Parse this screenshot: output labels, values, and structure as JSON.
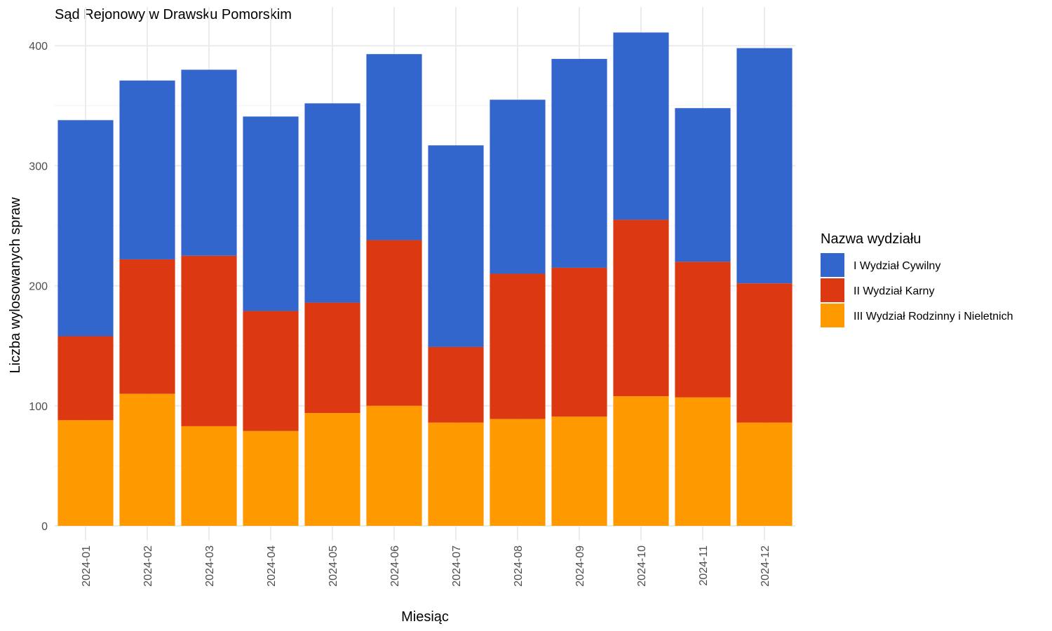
{
  "chart_data": {
    "type": "bar",
    "stacked": true,
    "title": "Sąd Rejonowy w Drawsku Pomorskim",
    "xlabel": "Miesiąc",
    "ylabel": "Liczba wylosowanych spraw",
    "ylim": [
      0,
      420
    ],
    "yticks": [
      0,
      100,
      200,
      300,
      400
    ],
    "grid": true,
    "legend": {
      "title": "Nazwa wydziału",
      "position": "right"
    },
    "categories": [
      "2024-01",
      "2024-02",
      "2024-03",
      "2024-04",
      "2024-05",
      "2024-06",
      "2024-07",
      "2024-08",
      "2024-09",
      "2024-10",
      "2024-11",
      "2024-12"
    ],
    "series": [
      {
        "name": "III Wydział Rodzinny i Nieletnich",
        "color": "#ff9900",
        "values": [
          88,
          110,
          83,
          79,
          94,
          100,
          86,
          89,
          91,
          108,
          107,
          86
        ]
      },
      {
        "name": "II Wydział Karny",
        "color": "#dc3912",
        "values": [
          70,
          112,
          142,
          100,
          92,
          138,
          63,
          121,
          124,
          147,
          113,
          116
        ]
      },
      {
        "name": "I Wydział Cywilny",
        "color": "#3366cc",
        "values": [
          180,
          149,
          155,
          162,
          166,
          155,
          168,
          145,
          174,
          156,
          128,
          196
        ]
      }
    ],
    "legend_order": [
      "I Wydział Cywilny",
      "II Wydział Karny",
      "III Wydział Rodzinny i Nieletnich"
    ]
  }
}
